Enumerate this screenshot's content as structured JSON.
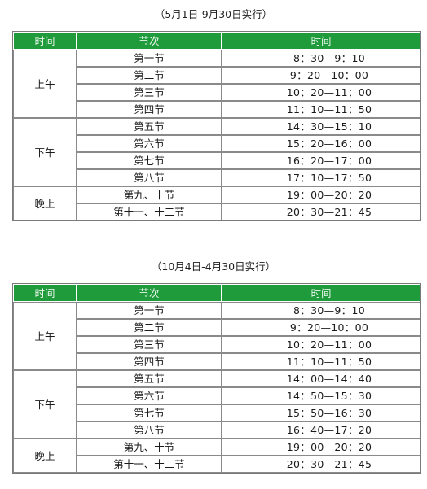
{
  "tables": [
    {
      "caption": "（5月1日-9月30日实行）",
      "headers": [
        "时间",
        "节次",
        "时间"
      ],
      "groups": [
        {
          "label": "上午",
          "rows": [
            {
              "period": "第一节",
              "time": "8：30—9：10"
            },
            {
              "period": "第二节",
              "time": "9：20—10：00"
            },
            {
              "period": "第三节",
              "time": "10：20—11：00"
            },
            {
              "period": "第四节",
              "time": "11：10—11：50"
            }
          ]
        },
        {
          "label": "下午",
          "rows": [
            {
              "period": "第五节",
              "time": "14：30—15：10"
            },
            {
              "period": "第六节",
              "time": "15：20—16：00"
            },
            {
              "period": "第七节",
              "time": "16：20—17：00"
            },
            {
              "period": "第八节",
              "time": "17：10—17：50"
            }
          ]
        },
        {
          "label": "晚上",
          "rows": [
            {
              "period": "第九、十节",
              "time": "19：00—20：20"
            },
            {
              "period": "第十一、十二节",
              "time": "20：30—21：45"
            }
          ]
        }
      ]
    },
    {
      "caption": "（10月4日-4月30日实行）",
      "headers": [
        "时间",
        "节次",
        "时间"
      ],
      "groups": [
        {
          "label": "上午",
          "rows": [
            {
              "period": "第一节",
              "time": "8：30—9：10"
            },
            {
              "period": "第二节",
              "time": "9：20—10：00"
            },
            {
              "period": "第三节",
              "time": "10：20—11：00"
            },
            {
              "period": "第四节",
              "time": "11：10—11：50"
            }
          ]
        },
        {
          "label": "下午",
          "rows": [
            {
              "period": "第五节",
              "time": "14：00—14：40"
            },
            {
              "period": "第六节",
              "time": "14：50—15：30"
            },
            {
              "period": "第七节",
              "time": "15：50—16：30"
            },
            {
              "period": "第八节",
              "time": "16：40—17：20"
            }
          ]
        },
        {
          "label": "晚上",
          "rows": [
            {
              "period": "第九、十节",
              "time": "19：00—20：20"
            },
            {
              "period": "第十一、十二节",
              "time": "20：30—21：45"
            }
          ]
        }
      ]
    }
  ]
}
